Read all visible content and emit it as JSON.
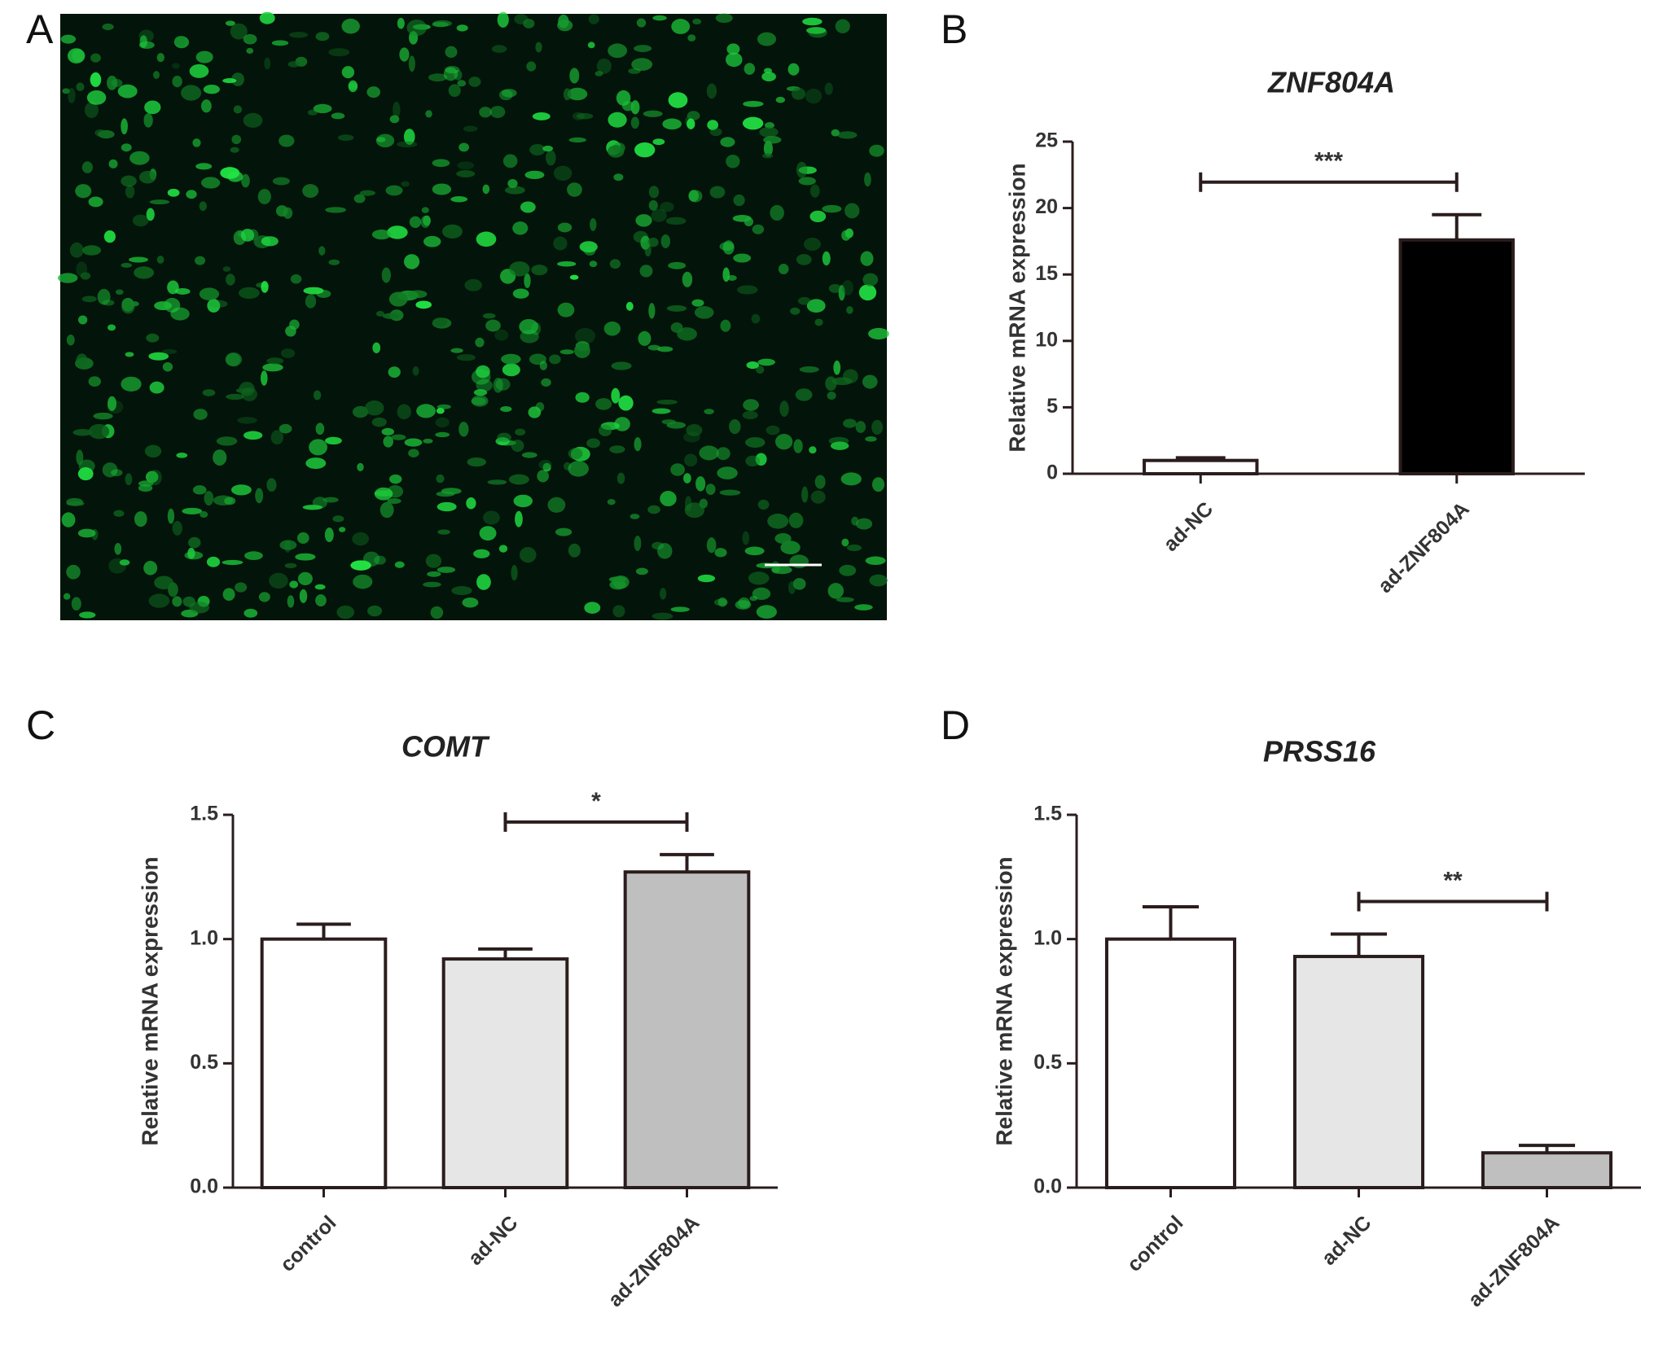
{
  "panel_labels": [
    "A",
    "B",
    "C",
    "D"
  ],
  "chart_data": [
    {
      "type": "bar",
      "title": "ZNF804A",
      "y_label": "Relative mRNA expression",
      "categories": [
        "ad-NC",
        "ad-ZNF804A"
      ],
      "values": [
        1.0,
        17.6
      ],
      "errors": [
        0.2,
        1.9
      ],
      "colors": [
        "#ffffff",
        "#000000"
      ],
      "ylim": [
        0,
        25
      ],
      "yticks": [
        0,
        5,
        10,
        15,
        20,
        25
      ],
      "significance": {
        "from": 0,
        "to": 1,
        "label": "***"
      }
    },
    {
      "type": "bar",
      "title": "COMT",
      "y_label": "Relative mRNA expression",
      "categories": [
        "control",
        "ad-NC",
        "ad-ZNF804A"
      ],
      "values": [
        1.0,
        0.92,
        1.27
      ],
      "errors": [
        0.06,
        0.04,
        0.07
      ],
      "colors": [
        "#ffffff",
        "#e6e6e6",
        "#bfbfbf"
      ],
      "ylim": [
        0,
        1.5
      ],
      "yticks": [
        {
          "value": 0,
          "label": "0.0"
        },
        {
          "value": 0.5,
          "label": "0.5"
        },
        {
          "value": 1,
          "label": "1.0"
        },
        {
          "value": 1.5,
          "label": "1.5"
        }
      ],
      "significance": {
        "from": 1,
        "to": 2,
        "label": "*"
      }
    },
    {
      "type": "bar",
      "title": "PRSS16",
      "y_label": "Relative mRNA expression",
      "categories": [
        "control",
        "ad-NC",
        "ad-ZNF804A"
      ],
      "values": [
        1.0,
        0.93,
        0.14
      ],
      "errors": [
        0.13,
        0.09,
        0.03
      ],
      "colors": [
        "#ffffff",
        "#e6e6e6",
        "#bfbfbf"
      ],
      "ylim": [
        0,
        1.5
      ],
      "yticks": [
        {
          "value": 0,
          "label": "0.0"
        },
        {
          "value": 0.5,
          "label": "0.5"
        },
        {
          "value": 1,
          "label": "1.0"
        },
        {
          "value": 1.5,
          "label": "1.5"
        }
      ],
      "significance": {
        "from": 1,
        "to": 2,
        "label": "**"
      }
    }
  ]
}
